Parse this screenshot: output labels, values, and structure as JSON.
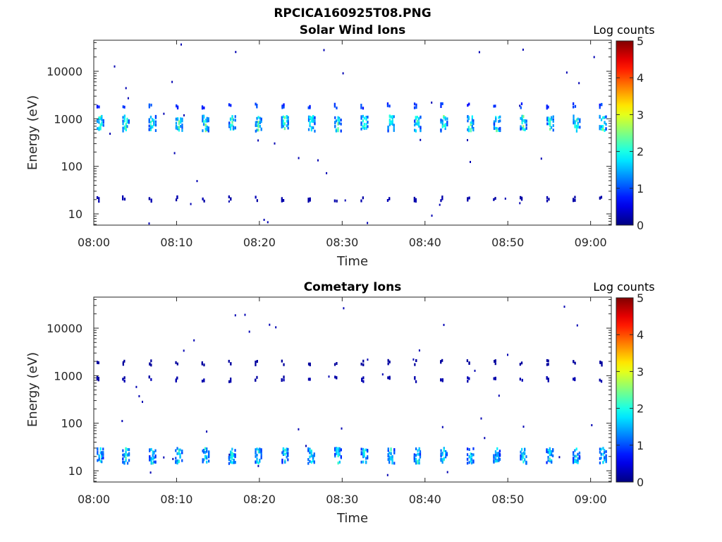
{
  "figure": {
    "title": "RPCICA160925T08.PNG"
  },
  "colors": {
    "axis": "#262626",
    "colormap": "jet"
  },
  "chart_data": [
    {
      "type": "heatmap",
      "title": "Solar Wind Ions",
      "xlabel": "Time",
      "ylabel": "Energy (eV)",
      "x_ticks": [
        "08:00",
        "08:10",
        "08:20",
        "08:30",
        "08:40",
        "08:50",
        "09:00"
      ],
      "x_tick_minutes": [
        0,
        10,
        20,
        30,
        40,
        50,
        60
      ],
      "xlim_minutes": [
        0,
        62.5
      ],
      "y_ticks": [
        "10",
        "100",
        "1000",
        "10000"
      ],
      "y_tick_values": [
        10,
        100,
        1000,
        10000
      ],
      "ylim": [
        5.8,
        45000
      ],
      "y_scale": "log",
      "colorbar": {
        "label": "Log counts",
        "ticks": [
          "0",
          "1",
          "2",
          "3",
          "4",
          "5"
        ],
        "range": [
          0,
          5
        ]
      },
      "sweep_start_minutes": [
        0.3,
        3.4,
        6.6,
        9.8,
        13.0,
        16.2,
        19.4,
        22.6,
        25.8,
        29.0,
        32.2,
        35.4,
        38.6,
        41.8,
        45.0,
        48.2,
        51.4,
        54.6,
        57.8,
        61.0
      ],
      "bands": [
        {
          "energy_ev": 850,
          "peak_log_counts": 2.7
        },
        {
          "energy_ev": 2000,
          "peak_log_counts": 2.0
        },
        {
          "energy_ev": 22,
          "peak_log_counts": 0.5
        }
      ]
    },
    {
      "type": "heatmap",
      "title": "Cometary Ions",
      "xlabel": "Time",
      "ylabel": "Energy (eV)",
      "x_ticks": [
        "08:00",
        "08:10",
        "08:20",
        "08:30",
        "08:40",
        "08:50",
        "09:00"
      ],
      "x_tick_minutes": [
        0,
        10,
        20,
        30,
        40,
        50,
        60
      ],
      "xlim_minutes": [
        0,
        62.5
      ],
      "y_ticks": [
        "10",
        "100",
        "1000",
        "10000"
      ],
      "y_tick_values": [
        10,
        100,
        1000,
        10000
      ],
      "ylim": [
        5.8,
        45000
      ],
      "y_scale": "log",
      "colorbar": {
        "label": "Log counts",
        "ticks": [
          "0",
          "1",
          "2",
          "3",
          "4",
          "5"
        ],
        "range": [
          0,
          5
        ]
      },
      "sweep_start_minutes": [
        0.3,
        3.4,
        6.6,
        9.8,
        13.0,
        16.2,
        19.4,
        22.6,
        25.8,
        29.0,
        32.2,
        35.4,
        38.6,
        41.8,
        45.0,
        48.2,
        51.4,
        54.6,
        57.8,
        61.0
      ],
      "bands": [
        {
          "energy_ev": 22,
          "peak_log_counts": 2.3
        },
        {
          "energy_ev": 900,
          "peak_log_counts": 0.5
        },
        {
          "energy_ev": 2000,
          "peak_log_counts": 0.3
        }
      ]
    }
  ]
}
